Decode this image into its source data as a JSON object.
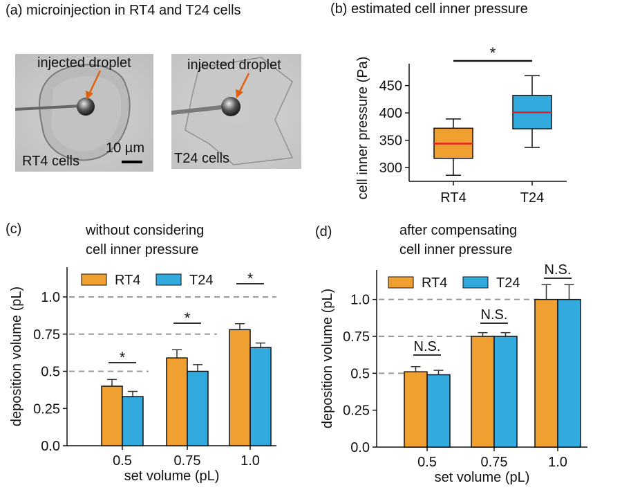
{
  "panels": {
    "a": {
      "letter": "(a)",
      "title": "microinjection in RT4 and T24 cells",
      "images": [
        {
          "label": "RT4 cells",
          "annotation": "injected droplet",
          "scale": "10 µm"
        },
        {
          "label": "T24 cells",
          "annotation": "injected droplet"
        }
      ]
    },
    "b": {
      "letter": "(b)",
      "title": "estimated cell inner pressure"
    },
    "c": {
      "letter": "(c)",
      "title_line1": "without considering",
      "title_line2": "cell inner pressure"
    },
    "d": {
      "letter": "(d)",
      "title_line1": "after compensating",
      "title_line2": "cell inner pressure"
    }
  },
  "colors": {
    "rt4": "#F0A030",
    "t24": "#33AADD",
    "median": "#E82020",
    "ref_line": "#999999"
  },
  "chart_data": [
    {
      "id": "b",
      "type": "box",
      "ylabel": "cell inner pressure (Pa)",
      "ylim": [
        275,
        490
      ],
      "yticks": [
        300,
        350,
        400,
        450
      ],
      "categories": [
        "RT4",
        "T24"
      ],
      "boxes": [
        {
          "name": "RT4",
          "min": 286,
          "q1": 317,
          "median": 344,
          "q3": 372,
          "max": 389
        },
        {
          "name": "T24",
          "min": 337,
          "q1": 371,
          "median": 401,
          "q3": 432,
          "max": 468
        }
      ],
      "significance": [
        {
          "from": 0,
          "to": 1,
          "label": "*"
        }
      ]
    },
    {
      "id": "c",
      "type": "bar",
      "xlabel": "set volume (pL)",
      "ylabel": "deposition volume (pL)",
      "ylim": [
        0,
        1.2
      ],
      "yticks": [
        0.0,
        0.25,
        0.5,
        0.75,
        1.0
      ],
      "ytick_labels": [
        "0.0",
        "0.25",
        "0.5",
        "0.75",
        "1.0"
      ],
      "categories": [
        "0.5",
        "0.75",
        "1.0"
      ],
      "reference_lines": [
        0.5,
        0.75,
        1.0
      ],
      "series": [
        {
          "name": "RT4",
          "values": [
            0.4,
            0.59,
            0.78
          ],
          "errors": [
            0.045,
            0.055,
            0.04
          ]
        },
        {
          "name": "T24",
          "values": [
            0.33,
            0.5,
            0.66
          ],
          "errors": [
            0.035,
            0.045,
            0.03
          ]
        }
      ],
      "significance": [
        {
          "group": 0,
          "label": "*"
        },
        {
          "group": 1,
          "label": "*"
        },
        {
          "group": 2,
          "label": "*"
        }
      ]
    },
    {
      "id": "d",
      "type": "bar",
      "xlabel": "set volume (pL)",
      "ylabel": "deposition volume (pL)",
      "ylim": [
        0,
        1.2
      ],
      "yticks": [
        0.0,
        0.25,
        0.5,
        0.75,
        1.0
      ],
      "ytick_labels": [
        "0.0",
        "0.25",
        "0.5",
        "0.75",
        "1.0"
      ],
      "categories": [
        "0.5",
        "0.75",
        "1.0"
      ],
      "reference_lines": [
        0.5,
        0.75,
        1.0
      ],
      "series": [
        {
          "name": "RT4",
          "values": [
            0.51,
            0.75,
            1.0
          ],
          "errors": [
            0.035,
            0.025,
            0.1
          ]
        },
        {
          "name": "T24",
          "values": [
            0.49,
            0.75,
            1.0
          ],
          "errors": [
            0.03,
            0.025,
            0.1
          ]
        }
      ],
      "significance": [
        {
          "group": 0,
          "label": "N.S."
        },
        {
          "group": 1,
          "label": "N.S."
        },
        {
          "group": 2,
          "label": "N.S."
        }
      ]
    }
  ]
}
